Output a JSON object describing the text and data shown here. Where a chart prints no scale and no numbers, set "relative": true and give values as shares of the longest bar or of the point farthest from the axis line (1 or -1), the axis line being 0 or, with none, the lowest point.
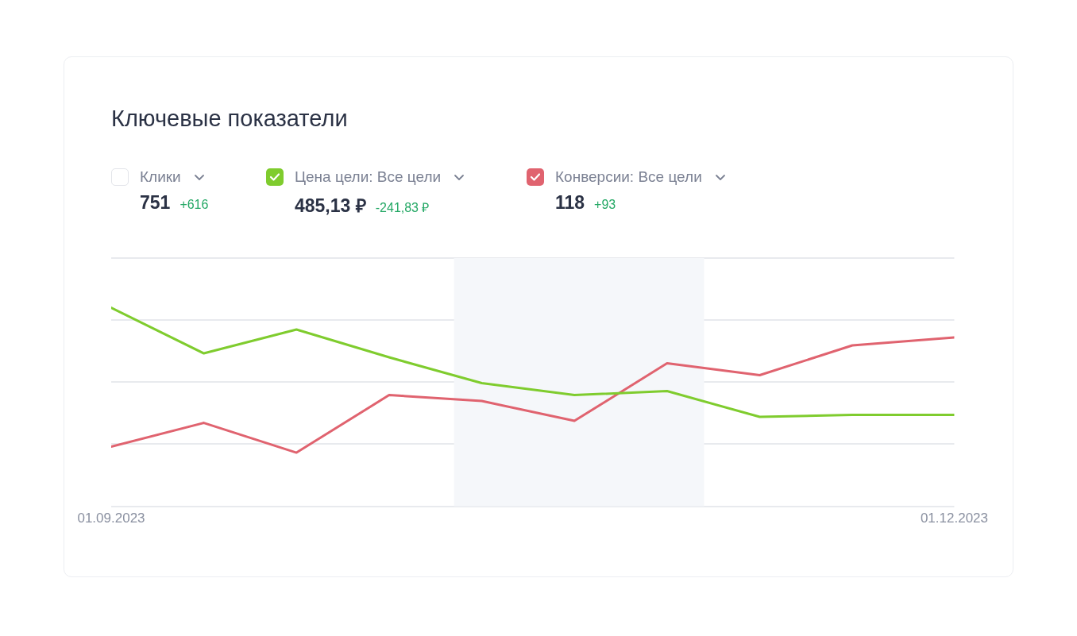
{
  "chart_data": {
    "type": "line",
    "title": "Ключевые показатели",
    "x": [
      "2023-09-01",
      "2023-09-11",
      "2023-09-21",
      "2023-10-01",
      "2023-10-11",
      "2023-10-21",
      "2023-10-31",
      "2023-11-10",
      "2023-11-20",
      "2023-12-01"
    ],
    "xlim": [
      "2023-09-01",
      "2023-12-01"
    ],
    "xticks": [
      {
        "value": "2023-09-01",
        "label": "01.09.2023"
      },
      {
        "value": "2023-12-01",
        "label": "01.12.2023"
      }
    ],
    "relative": true,
    "series": [
      {
        "name": "Цена цели: Все цели",
        "color": "#7fcc2e",
        "values": [
          1,
          0.77,
          0.89,
          0.75,
          0.62,
          0.56,
          0.58,
          0.45,
          0.46,
          0.46
        ]
      },
      {
        "name": "Конверсии: Все цели",
        "color": "#e0636f",
        "values": [
          0.3,
          0.42,
          0.27,
          0.56,
          0.53,
          0.43,
          0.72,
          0.66,
          0.81,
          0.85
        ]
      }
    ],
    "bands": [
      {
        "axis": "x",
        "from": "2023-10-08",
        "to": "2023-11-04",
        "color": "#f5f7fa"
      }
    ],
    "annotations": [
      "Клики",
      "751",
      "+616",
      "485,13 ₽",
      "-241,83 ₽",
      "118",
      "+93"
    ],
    "grid": "y",
    "legend": "top left",
    "marker": "none",
    "line_style": "solid",
    "tick_labels": "x"
  }
}
